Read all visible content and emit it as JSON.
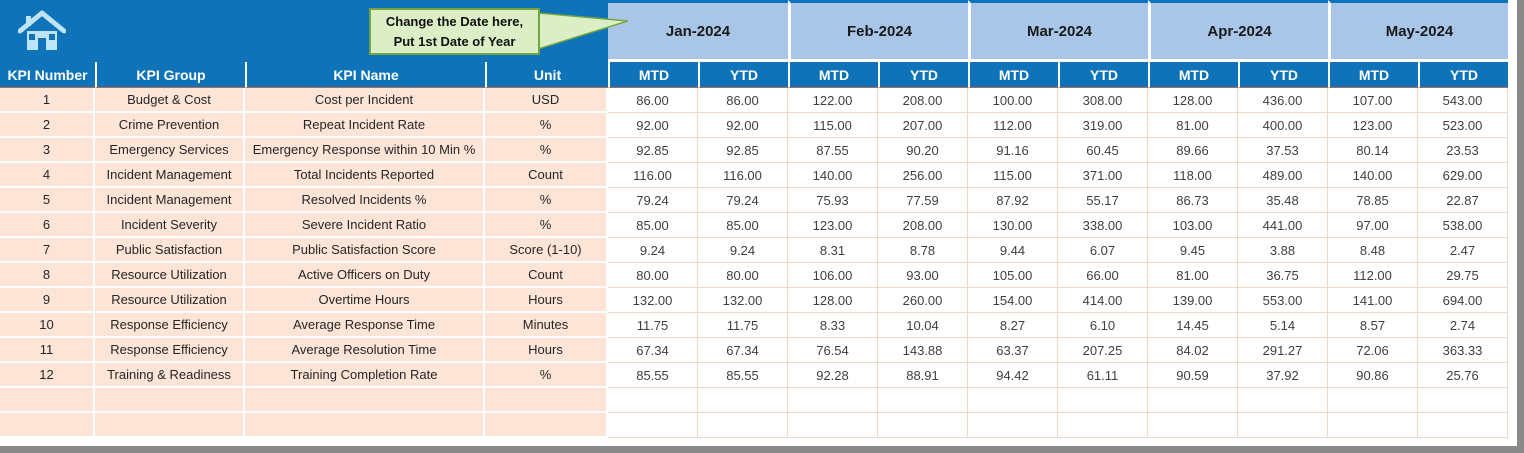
{
  "callout": {
    "line1": "Change the Date here,",
    "line2": "Put 1st Date of Year"
  },
  "table": {
    "label_headers": [
      "KPI Number",
      "KPI Group",
      "KPI Name",
      "Unit"
    ],
    "months": [
      "Jan-2024",
      "Feb-2024",
      "Mar-2024",
      "Apr-2024",
      "May-2024"
    ],
    "sub_headers": [
      "MTD",
      "YTD"
    ],
    "rows": [
      {
        "num": "1",
        "group": "Budget & Cost",
        "name": "Cost per Incident",
        "unit": "USD",
        "values": [
          "86.00",
          "86.00",
          "122.00",
          "208.00",
          "100.00",
          "308.00",
          "128.00",
          "436.00",
          "107.00",
          "543.00"
        ]
      },
      {
        "num": "2",
        "group": "Crime Prevention",
        "name": "Repeat Incident Rate",
        "unit": "%",
        "values": [
          "92.00",
          "92.00",
          "115.00",
          "207.00",
          "112.00",
          "319.00",
          "81.00",
          "400.00",
          "123.00",
          "523.00"
        ]
      },
      {
        "num": "3",
        "group": "Emergency Services",
        "name": "Emergency Response within 10 Min %",
        "unit": "%",
        "values": [
          "92.85",
          "92.85",
          "87.55",
          "90.20",
          "91.16",
          "60.45",
          "89.66",
          "37.53",
          "80.14",
          "23.53"
        ]
      },
      {
        "num": "4",
        "group": "Incident Management",
        "name": "Total Incidents Reported",
        "unit": "Count",
        "values": [
          "116.00",
          "116.00",
          "140.00",
          "256.00",
          "115.00",
          "371.00",
          "118.00",
          "489.00",
          "140.00",
          "629.00"
        ]
      },
      {
        "num": "5",
        "group": "Incident Management",
        "name": "Resolved Incidents %",
        "unit": "%",
        "values": [
          "79.24",
          "79.24",
          "75.93",
          "77.59",
          "87.92",
          "55.17",
          "86.73",
          "35.48",
          "78.85",
          "22.87"
        ]
      },
      {
        "num": "6",
        "group": "Incident Severity",
        "name": "Severe Incident Ratio",
        "unit": "%",
        "values": [
          "85.00",
          "85.00",
          "123.00",
          "208.00",
          "130.00",
          "338.00",
          "103.00",
          "441.00",
          "97.00",
          "538.00"
        ]
      },
      {
        "num": "7",
        "group": "Public Satisfaction",
        "name": "Public Satisfaction Score",
        "unit": "Score (1-10)",
        "values": [
          "9.24",
          "9.24",
          "8.31",
          "8.78",
          "9.44",
          "6.07",
          "9.45",
          "3.88",
          "8.48",
          "2.47"
        ]
      },
      {
        "num": "8",
        "group": "Resource Utilization",
        "name": "Active Officers on Duty",
        "unit": "Count",
        "values": [
          "80.00",
          "80.00",
          "106.00",
          "93.00",
          "105.00",
          "66.00",
          "81.00",
          "36.75",
          "112.00",
          "29.75"
        ]
      },
      {
        "num": "9",
        "group": "Resource Utilization",
        "name": "Overtime Hours",
        "unit": "Hours",
        "values": [
          "132.00",
          "132.00",
          "128.00",
          "260.00",
          "154.00",
          "414.00",
          "139.00",
          "553.00",
          "141.00",
          "694.00"
        ]
      },
      {
        "num": "10",
        "group": "Response Efficiency",
        "name": "Average Response Time",
        "unit": "Minutes",
        "values": [
          "11.75",
          "11.75",
          "8.33",
          "10.04",
          "8.27",
          "6.10",
          "14.45",
          "5.14",
          "8.57",
          "2.74"
        ]
      },
      {
        "num": "11",
        "group": "Response Efficiency",
        "name": "Average Resolution Time",
        "unit": "Hours",
        "values": [
          "67.34",
          "67.34",
          "76.54",
          "143.88",
          "63.37",
          "207.25",
          "84.02",
          "291.27",
          "72.06",
          "363.33"
        ]
      },
      {
        "num": "12",
        "group": "Training & Readiness",
        "name": "Training Completion Rate",
        "unit": "%",
        "values": [
          "85.55",
          "85.55",
          "92.28",
          "88.91",
          "94.42",
          "61.11",
          "90.59",
          "37.92",
          "90.86",
          "25.76"
        ]
      }
    ],
    "empty_rows": 2
  },
  "icons": {
    "home": "home-icon"
  },
  "colors": {
    "darkBlue": "#0E73B9",
    "lightBlue": "#A9C6E8",
    "peach": "#FCE4D6",
    "calloutBg": "#DBEEC5",
    "calloutBorder": "#74A63F",
    "windowEdge": "#8A8A8A"
  }
}
